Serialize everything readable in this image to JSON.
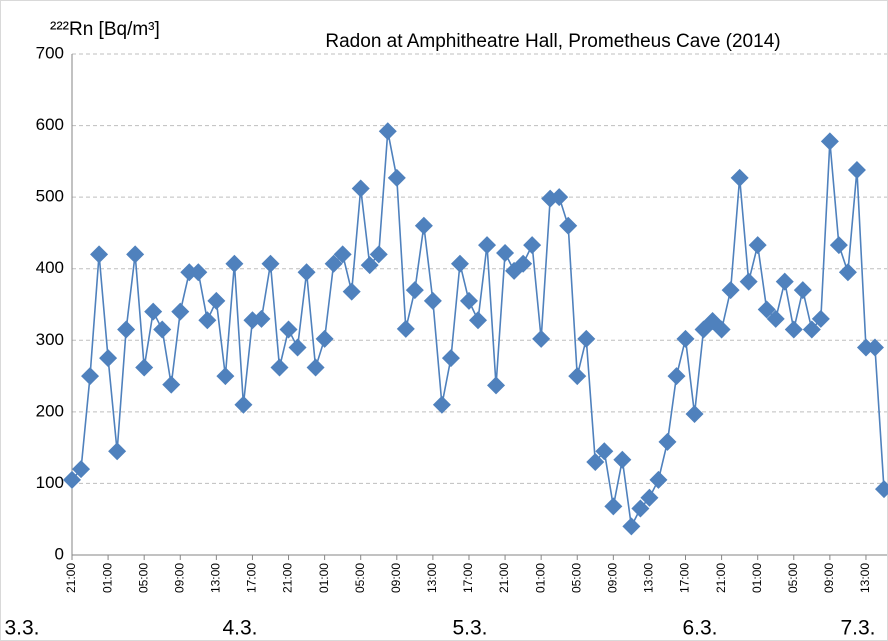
{
  "chart_data": {
    "type": "line",
    "title": "Radon at Amphitheatre Hall, Prometheus Cave (2014)",
    "y_label": "²²²Rn [Bq/m³]",
    "categories": [
      "21:00",
      null,
      null,
      null,
      "01:00",
      null,
      null,
      null,
      "05:00",
      null,
      null,
      null,
      "09:00",
      null,
      null,
      null,
      "13:00",
      null,
      null,
      null,
      "17:00",
      null,
      null,
      null,
      "21:00",
      null,
      null,
      null,
      "01:00",
      null,
      null,
      null,
      "05:00",
      null,
      null,
      null,
      "09:00",
      null,
      null,
      null,
      "13:00",
      null,
      null,
      null,
      "17:00",
      null,
      null,
      null,
      "21:00",
      null,
      null,
      null,
      "01:00",
      null,
      null,
      null,
      "05:00",
      null,
      null,
      null,
      "09:00",
      null,
      null,
      null,
      "13:00",
      null,
      null,
      null,
      "17:00",
      null,
      null,
      null,
      "21:00",
      null,
      null,
      null,
      "01:00",
      null,
      null,
      null,
      "05:00",
      null,
      null,
      null,
      "09:00",
      null,
      null,
      null,
      "13:00",
      null,
      null
    ],
    "day_labels": [
      "3.3.",
      "4.3.",
      "5.3.",
      "6.3.",
      "7.3."
    ],
    "series": [
      {
        "name": "Rn",
        "color": "#4f81bd",
        "values": [
          105,
          120,
          250,
          420,
          275,
          145,
          315,
          420,
          262,
          340,
          315,
          238,
          340,
          395,
          395,
          328,
          355,
          250,
          407,
          210,
          328,
          330,
          407,
          262,
          315,
          290,
          395,
          262,
          302,
          407,
          420,
          368,
          512,
          405,
          420,
          592,
          527,
          316,
          370,
          460,
          355,
          210,
          275,
          407,
          355,
          328,
          433,
          237,
          422,
          397,
          407,
          433,
          302,
          498,
          500,
          460,
          250,
          302,
          130,
          145,
          68,
          133,
          40,
          65,
          80,
          105,
          158,
          250,
          302,
          197,
          315,
          327,
          315,
          370,
          527,
          382,
          433,
          343,
          330,
          382,
          315,
          370,
          315,
          330,
          578,
          433,
          395,
          538,
          290,
          290,
          92
        ]
      }
    ],
    "ylim": [
      0,
      700
    ],
    "yticks": [
      0,
      100,
      200,
      300,
      400,
      500,
      600,
      700
    ],
    "grid": true
  }
}
